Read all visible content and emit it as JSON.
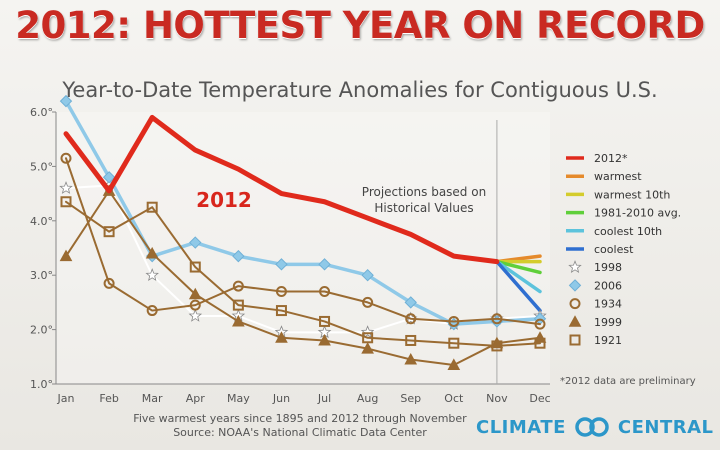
{
  "chart_data": {
    "type": "line",
    "title": "2012: HOTTEST YEAR ON RECORD",
    "subtitle": "Year-to-Date Temperature Anomalies for Contiguous U.S.",
    "categories": [
      "Jan",
      "Feb",
      "Mar",
      "Apr",
      "May",
      "Jun",
      "Jul",
      "Aug",
      "Sep",
      "Oct",
      "Nov",
      "Dec"
    ],
    "y_ticks": [
      "1.0°",
      "2.0°",
      "3.0°",
      "4.0°",
      "5.0°",
      "6.0°"
    ],
    "ylim": [
      1.0,
      6.0
    ],
    "grid": false,
    "legend_position": "right",
    "annotations": {
      "series_label": "2012",
      "projection_label_1": "Projections based on",
      "projection_label_2": "Historical Values",
      "preliminary_note": "*2012 data are preliminary"
    },
    "series": [
      {
        "name": "2012*",
        "color": "#e02a1c",
        "marker": "none",
        "values": [
          5.6,
          4.55,
          5.9,
          5.3,
          4.95,
          4.5,
          4.35,
          4.05,
          3.75,
          3.35,
          3.25,
          null
        ]
      },
      {
        "name": "1998",
        "color": "#ffffff",
        "marker": "star",
        "values": [
          4.6,
          4.65,
          3.0,
          2.25,
          2.25,
          1.95,
          1.95,
          1.95,
          2.2,
          2.1,
          2.2,
          2.25
        ]
      },
      {
        "name": "2006",
        "color": "#8fc9e8",
        "marker": "diamond",
        "values": [
          6.2,
          4.8,
          3.35,
          3.6,
          3.35,
          3.2,
          3.2,
          3.0,
          2.5,
          2.1,
          2.15,
          2.2
        ]
      },
      {
        "name": "1934",
        "color": "#9a6b32",
        "marker": "circle",
        "values": [
          5.15,
          2.85,
          2.35,
          2.45,
          2.8,
          2.7,
          2.7,
          2.5,
          2.2,
          2.15,
          2.2,
          2.1
        ]
      },
      {
        "name": "1999",
        "color": "#9a6b32",
        "marker": "triangle",
        "values": [
          3.35,
          4.55,
          3.4,
          2.65,
          2.15,
          1.85,
          1.8,
          1.65,
          1.45,
          1.35,
          1.75,
          1.85
        ]
      },
      {
        "name": "1921",
        "color": "#9a6b32",
        "marker": "square",
        "values": [
          4.35,
          3.8,
          4.25,
          3.15,
          2.45,
          2.35,
          2.15,
          1.85,
          1.8,
          1.75,
          1.7,
          1.75
        ]
      }
    ],
    "projections": {
      "start_month": "Nov",
      "start_value": 3.25,
      "end_month": "Dec",
      "lines": [
        {
          "name": "warmest",
          "color": "#e58a2b",
          "value": 3.35
        },
        {
          "name": "warmest 10th",
          "color": "#d4cc2c",
          "value": 3.25
        },
        {
          "name": "1981-2010 avg.",
          "color": "#5fcf3a",
          "value": 3.05
        },
        {
          "name": "coolest 10th",
          "color": "#5cc3dc",
          "value": 2.7
        },
        {
          "name": "coolest",
          "color": "#2f6fd0",
          "value": 2.35
        }
      ]
    },
    "legend": [
      {
        "label": "2012*",
        "color": "#e02a1c",
        "marker": "line"
      },
      {
        "label": "warmest",
        "color": "#e58a2b",
        "marker": "line"
      },
      {
        "label": "warmest 10th",
        "color": "#d4cc2c",
        "marker": "line"
      },
      {
        "label": "1981-2010 avg.",
        "color": "#5fcf3a",
        "marker": "line"
      },
      {
        "label": "coolest 10th",
        "color": "#5cc3dc",
        "marker": "line"
      },
      {
        "label": "coolest",
        "color": "#2f6fd0",
        "marker": "line"
      },
      {
        "label": "1998",
        "color": "#ffffff",
        "marker": "star"
      },
      {
        "label": "2006",
        "color": "#8fc9e8",
        "marker": "diamond"
      },
      {
        "label": "1934",
        "color": "#9a6b32",
        "marker": "circle"
      },
      {
        "label": "1999",
        "color": "#9a6b32",
        "marker": "triangle"
      },
      {
        "label": "1921",
        "color": "#9a6b32",
        "marker": "square"
      }
    ]
  },
  "footer": {
    "line1": "Five warmest years since 1895 and 2012 through November",
    "line2": "Source: NOAA's National Climatic Data Center"
  },
  "brand": {
    "left": "CLIMATE",
    "right": "CENTRAL",
    "logo_icon": "chain-rings-logo",
    "color": "#2c97c9"
  }
}
